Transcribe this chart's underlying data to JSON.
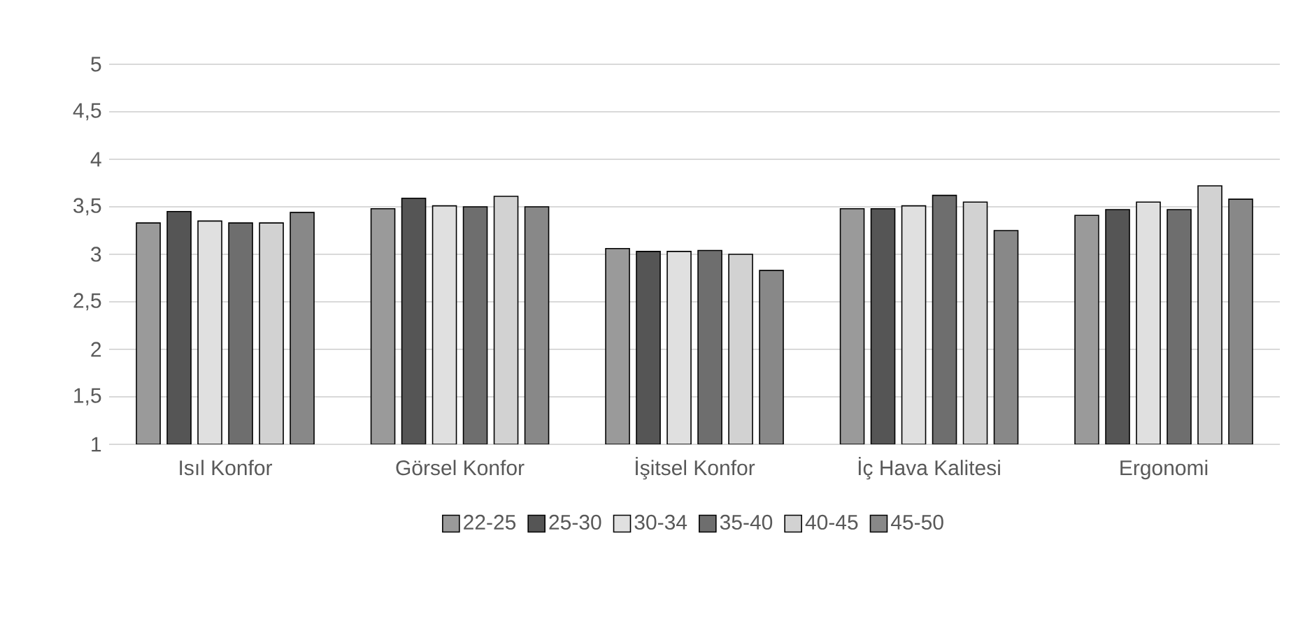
{
  "chart_data": {
    "type": "bar",
    "categories": [
      "Isıl Konfor",
      "Görsel Konfor",
      "İşitsel Konfor",
      "İç Hava Kalitesi",
      "Ergonomi"
    ],
    "series": [
      {
        "name": "22-25",
        "color": "#9a9a9a",
        "values": [
          3.33,
          3.48,
          3.06,
          3.48,
          3.41
        ]
      },
      {
        "name": "25-30",
        "color": "#555555",
        "values": [
          3.45,
          3.59,
          3.03,
          3.48,
          3.47
        ]
      },
      {
        "name": "30-34",
        "color": "#e0e0e0",
        "values": [
          3.35,
          3.51,
          3.03,
          3.51,
          3.55
        ]
      },
      {
        "name": "35-40",
        "color": "#6e6e6e",
        "values": [
          3.33,
          3.5,
          3.04,
          3.62,
          3.47
        ]
      },
      {
        "name": "40-45",
        "color": "#d2d2d2",
        "values": [
          3.33,
          3.61,
          3.0,
          3.55,
          3.72
        ]
      },
      {
        "name": "45-50",
        "color": "#888888",
        "values": [
          3.44,
          3.5,
          2.83,
          3.25,
          3.58
        ]
      }
    ],
    "ylim": [
      1,
      5
    ],
    "yticks": [
      1,
      {
        "value": 1.5,
        "label": "1,5"
      },
      2,
      {
        "value": 2.5,
        "label": "2,5"
      },
      3,
      {
        "value": 3.5,
        "label": "3,5"
      },
      4,
      {
        "value": 4.5,
        "label": "4,5"
      },
      5
    ],
    "grid": "y",
    "legend": "bottom"
  }
}
